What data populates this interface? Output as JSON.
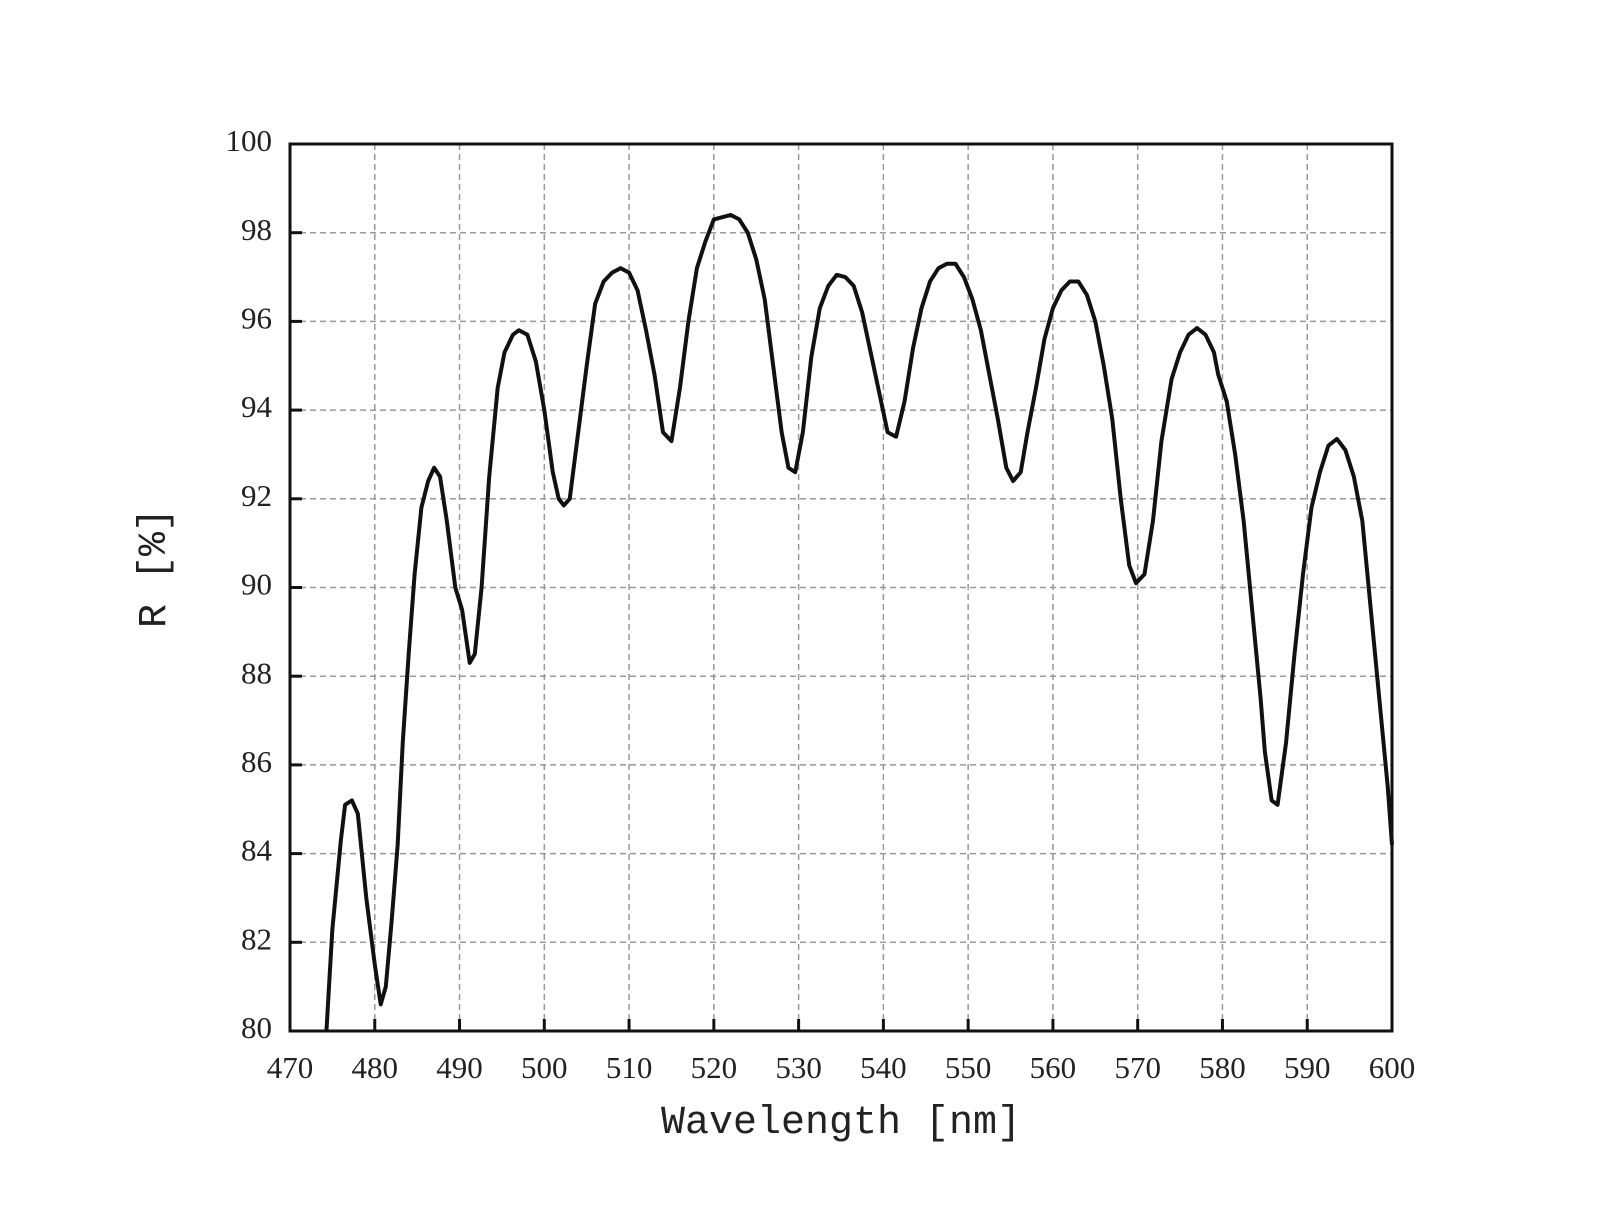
{
  "chart_data": {
    "type": "line",
    "xlabel": "Wavelength [nm]",
    "ylabel": "R [%]",
    "x": [
      474.3,
      474.6,
      475,
      475.5,
      476,
      476.5,
      477.3,
      478,
      479,
      480,
      480.7,
      481.3,
      482,
      482.7,
      483.3,
      484,
      484.7,
      485.5,
      486.3,
      487,
      487.7,
      488.5,
      489.5,
      490.3,
      491.2,
      491.8,
      492.6,
      493.5,
      494.5,
      495.3,
      496.3,
      497,
      498,
      499,
      500,
      501,
      501.7,
      502.3,
      503,
      504,
      505,
      506,
      507,
      508,
      509,
      510,
      511,
      512,
      513,
      514,
      515,
      516,
      517,
      518,
      519,
      520,
      521,
      522,
      523,
      524,
      525,
      526,
      527,
      528,
      528.8,
      529.6,
      530.5,
      531.5,
      532.5,
      533.5,
      534.5,
      535.5,
      536.5,
      537.5,
      538.5,
      539.5,
      540.5,
      541.5,
      542.5,
      543.5,
      544.5,
      545.5,
      546.5,
      547.5,
      548.5,
      549.5,
      550.5,
      551.5,
      552.5,
      553.5,
      554.5,
      555.3,
      556.2,
      557,
      558,
      559,
      560,
      561,
      562,
      563,
      564,
      565,
      566,
      567,
      568,
      569,
      569.8,
      570.8,
      571.8,
      572.8,
      574,
      575,
      576,
      577,
      578,
      579,
      579.5,
      580.5,
      581.5,
      582.5,
      583.5,
      584.5,
      585,
      585.8,
      586.5,
      587.5,
      588.5,
      589.5,
      590.5,
      591.5,
      592.5,
      593.5,
      594.5,
      595.5,
      596.5,
      597.5,
      598.5,
      599.5,
      600
    ],
    "values": [
      80,
      81,
      82.3,
      83.3,
      84.3,
      85.1,
      85.2,
      84.9,
      83,
      81.5,
      80.6,
      81,
      82.5,
      84.2,
      86.5,
      88.5,
      90.3,
      91.8,
      92.4,
      92.7,
      92.5,
      91.5,
      90,
      89.5,
      88.3,
      88.5,
      90,
      92.5,
      94.5,
      95.3,
      95.7,
      95.8,
      95.7,
      95.1,
      94,
      92.6,
      92,
      91.85,
      92,
      93.5,
      95,
      96.4,
      96.9,
      97.1,
      97.2,
      97.1,
      96.7,
      95.8,
      94.8,
      93.5,
      93.3,
      94.5,
      96,
      97.2,
      97.8,
      98.3,
      98.35,
      98.4,
      98.3,
      98,
      97.4,
      96.5,
      95,
      93.5,
      92.7,
      92.6,
      93.5,
      95.2,
      96.3,
      96.8,
      97.05,
      97,
      96.8,
      96.2,
      95.3,
      94.4,
      93.5,
      93.4,
      94.2,
      95.4,
      96.3,
      96.9,
      97.2,
      97.3,
      97.3,
      97,
      96.5,
      95.8,
      94.8,
      93.8,
      92.7,
      92.4,
      92.6,
      93.5,
      94.5,
      95.6,
      96.3,
      96.7,
      96.9,
      96.9,
      96.6,
      96,
      95,
      93.8,
      92,
      90.5,
      90.1,
      90.3,
      91.5,
      93.3,
      94.7,
      95.3,
      95.7,
      95.85,
      95.7,
      95.3,
      94.8,
      94.2,
      93,
      91.5,
      89.5,
      87.5,
      86.3,
      85.2,
      85.1,
      86.5,
      88.5,
      90.3,
      91.8,
      92.6,
      93.2,
      93.35,
      93.1,
      92.5,
      91.5,
      89.5,
      87.5,
      85.5,
      84.2
    ],
    "color": "#111111",
    "xlim": [
      470,
      600
    ],
    "xticks": [
      470,
      480,
      490,
      500,
      510,
      520,
      530,
      540,
      550,
      560,
      570,
      580,
      590,
      600
    ],
    "ylim": [
      80,
      100
    ],
    "yticks": [
      80,
      82,
      84,
      86,
      88,
      90,
      92,
      94,
      96,
      98,
      100
    ],
    "grid": true
  }
}
